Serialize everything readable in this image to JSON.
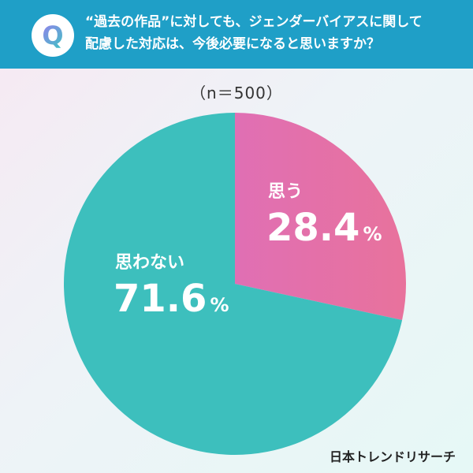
{
  "question": {
    "badge": "Q",
    "line1": "“過去の作品”に対しても、ジェンダーバイアスに関して",
    "line2": "配慮した対応は、今後必要になると思いますか？"
  },
  "sample_size": "（n＝500）",
  "brand": "日本トレンドリサーチ",
  "chart_data": {
    "type": "pie",
    "categories": [
      "思う",
      "思わない"
    ],
    "values": [
      28.4,
      71.6
    ],
    "value_labels": [
      "28.4",
      "71.6"
    ],
    "unit": "%",
    "start": "12 o'clock, clockwise"
  },
  "colors": {
    "header": "#1f9fc7",
    "slice_yes_start": "#e06fb4",
    "slice_yes_end": "#e8729c",
    "slice_no": "#3dbfbd",
    "label_text": "#ffffff"
  }
}
